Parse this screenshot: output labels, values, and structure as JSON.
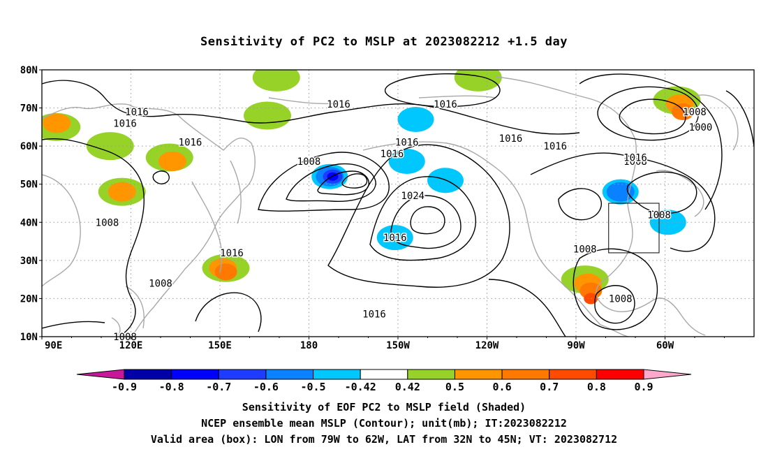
{
  "title": "Sensitivity of PC2 to MSLP at 2023082212 +1.5 day",
  "lon_ticks": [
    "90E",
    "120E",
    "150E",
    "180",
    "150W",
    "120W",
    "90W",
    "60W"
  ],
  "lat_ticks": [
    "10N",
    "20N",
    "30N",
    "40N",
    "50N",
    "60N",
    "70N",
    "80N"
  ],
  "contour_labels": [
    {
      "text": "1016",
      "lon": 1.0,
      "lat": 1.0
    },
    {
      "text": "1016",
      "lon": 2.0,
      "lat": 2.0
    },
    {
      "text": "1016",
      "lon": 3.0,
      "lat": 3.0
    },
    {
      "text": "1016",
      "lon": 4.0,
      "lat": 4.0
    },
    {
      "text": "1016",
      "lon": 5.0,
      "lat": 5.0
    },
    {
      "text": "1016",
      "lon": 6.0,
      "lat": 6.0
    },
    {
      "text": "1016",
      "lon": 7.0,
      "lat": 7.0
    },
    {
      "text": "1008",
      "lon": 8.0,
      "lat": 8.0
    },
    {
      "text": "1016",
      "lon": 9.0,
      "lat": 9.0
    },
    {
      "text": "1024",
      "lon": 10.0,
      "lat": 10.0
    },
    {
      "text": "1016",
      "lon": 11.0,
      "lat": 11.0
    },
    {
      "text": "1016",
      "lon": 12.0,
      "lat": 12.0
    },
    {
      "text": "1008",
      "lon": 13.0,
      "lat": 13.0
    },
    {
      "text": "1008",
      "lon": 14.0,
      "lat": 14.0
    },
    {
      "text": "1008",
      "lon": 15.0,
      "lat": 15.0
    },
    {
      "text": "1016",
      "lon": 16.0,
      "lat": 16.0
    },
    {
      "text": "1016",
      "lon": 17.0,
      "lat": 17.0
    },
    {
      "text": "1008",
      "lon": 18.0,
      "lat": 18.0
    },
    {
      "text": "1008",
      "lon": 19.0,
      "lat": 19.0
    },
    {
      "text": "1000",
      "lon": 20.0,
      "lat": 20.0
    },
    {
      "text": "1008",
      "lon": 21.0,
      "lat": 21.0
    },
    {
      "text": "1016",
      "lon": 22.0,
      "lat": 22.0
    },
    {
      "text": "1008",
      "lon": 23.0,
      "lat": 23.0
    },
    {
      "text": "1008",
      "lon": 24.0,
      "lat": 24.0
    }
  ],
  "valid_box": {
    "lon_min": 281,
    "lon_max": 298,
    "lat_min": 32,
    "lat_max": 45
  },
  "colorbar": {
    "labels": [
      "-0.9",
      "-0.8",
      "-0.7",
      "-0.6",
      "-0.5",
      "-0.42",
      "0.42",
      "0.5",
      "0.6",
      "0.7",
      "0.8",
      "0.9"
    ],
    "colors": [
      "#0000a8",
      "#0000ff",
      "#1e3cff",
      "#0a82ff",
      "#00c8ff",
      "#ffffff",
      "#96d228",
      "#ff9600",
      "#ff7800",
      "#ff4b00",
      "#ff0000"
    ],
    "low_extend_color": "#c8189a",
    "high_extend_color": "#ffa8cc"
  },
  "captions": {
    "line1": "Sensitivity of EOF PC2 to MSLP field (Shaded)",
    "line2": "NCEP ensemble mean MSLP (Contour); unit(mb); IT:2023082212",
    "line3": "Valid area (box): LON from 79W to 62W, LAT from 32N to 45N; VT: 2023082712"
  },
  "shaded_regions": [
    {
      "value_class": "0.42-0.5",
      "lon": 95,
      "lat": 65
    },
    {
      "value_class": "0.5-0.6",
      "lon": 95,
      "lat": 66
    },
    {
      "value_class": "0.42-0.5",
      "lon": 113,
      "lat": 60
    },
    {
      "value_class": "0.42-0.5",
      "lon": 117,
      "lat": 48
    },
    {
      "value_class": "0.5-0.6",
      "lon": 117,
      "lat": 48
    },
    {
      "value_class": "0.42-0.5",
      "lon": 133,
      "lat": 57
    },
    {
      "value_class": "0.5-0.6",
      "lon": 134,
      "lat": 56
    },
    {
      "value_class": "0.42-0.5",
      "lon": 152,
      "lat": 28
    },
    {
      "value_class": "0.5-0.6",
      "lon": 151,
      "lat": 28
    },
    {
      "value_class": "0.6-0.7",
      "lon": 152,
      "lat": 27
    },
    {
      "value_class": "0.42-0.5",
      "lon": 169,
      "lat": 78
    },
    {
      "value_class": "0.42-0.5",
      "lon": 237,
      "lat": 78
    },
    {
      "value_class": "0.42-0.5",
      "lon": 166,
      "lat": 68
    },
    {
      "value_class": "-0.5--0.42",
      "lon": 187,
      "lat": 52
    },
    {
      "value_class": "-0.6--0.5",
      "lon": 187,
      "lat": 52
    },
    {
      "value_class": "-0.7--0.6",
      "lon": 188,
      "lat": 52
    },
    {
      "value_class": "-0.8--0.7",
      "lon": 188,
      "lat": 52
    },
    {
      "value_class": "-0.5--0.42",
      "lon": 216,
      "lat": 67
    },
    {
      "value_class": "-0.5--0.42",
      "lon": 213,
      "lat": 56
    },
    {
      "value_class": "-0.5--0.42",
      "lon": 209,
      "lat": 36
    },
    {
      "value_class": "-0.5--0.42",
      "lon": 226,
      "lat": 51
    },
    {
      "value_class": "0.42-0.5",
      "lon": 273,
      "lat": 25
    },
    {
      "value_class": "0.5-0.6",
      "lon": 274,
      "lat": 24
    },
    {
      "value_class": "0.6-0.7",
      "lon": 275,
      "lat": 22
    },
    {
      "value_class": "0.7-0.8",
      "lon": 275,
      "lat": 20
    },
    {
      "value_class": "-0.5--0.42",
      "lon": 285,
      "lat": 48
    },
    {
      "value_class": "-0.6--0.5",
      "lon": 285,
      "lat": 48
    },
    {
      "value_class": "-0.5--0.42",
      "lon": 301,
      "lat": 40
    },
    {
      "value_class": "0.42-0.5",
      "lon": 304,
      "lat": 72
    },
    {
      "value_class": "0.5-0.6",
      "lon": 305,
      "lat": 71
    },
    {
      "value_class": "0.6-0.7",
      "lon": 306,
      "lat": 69
    }
  ]
}
